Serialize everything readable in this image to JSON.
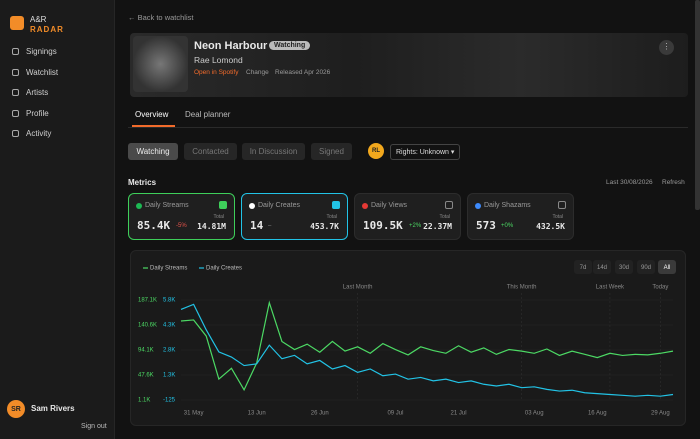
{
  "sidebar": {
    "brand": [
      "A&R",
      "RADAR"
    ],
    "nav": [
      "Signings",
      "Watchlist",
      "Artists",
      "Profile",
      "Activity"
    ],
    "user": {
      "initials": "SR",
      "name": "Sam Rivers",
      "signout": "Sign out"
    }
  },
  "header": {
    "back": "Back to watchlist",
    "title": "Neon Harbour",
    "badge": "Watching",
    "artist": "Rae Lomond",
    "links": [
      "Open in Spotify",
      "Change",
      "Released Apr 2026"
    ]
  },
  "tabs": {
    "items": [
      "Overview",
      "Deal planner"
    ],
    "active": 0
  },
  "status": {
    "items": [
      "Watching",
      "Contacted",
      "In Discussion",
      "Signed"
    ],
    "active": 0,
    "owner": "RL",
    "rights": "Rights: Unknown"
  },
  "metrics": {
    "title": "Metrics",
    "last": "Last 30/08/2026",
    "refresh": "Refresh",
    "cards": [
      {
        "name": "Daily Streams",
        "value": "85.4K",
        "delta": "-5%",
        "total_label": "Total",
        "total": "14.81M",
        "checked": true,
        "color": "#3ecf5a",
        "icon": "#1db954"
      },
      {
        "name": "Daily Creates",
        "value": "14",
        "delta": "–",
        "total_label": "Total",
        "total": "453.7K",
        "checked": true,
        "color": "#22c3e6",
        "icon": "#ffffff"
      },
      {
        "name": "Daily Views",
        "value": "109.5K",
        "delta": "+2%",
        "total_label": "Total",
        "total": "22.37M",
        "checked": false,
        "color": null,
        "icon": "#e53935"
      },
      {
        "name": "Daily Shazams",
        "value": "573",
        "delta": "+0%",
        "total_label": "Total",
        "total": "432.5K",
        "checked": false,
        "color": null,
        "icon": "#3d8bfd"
      }
    ]
  },
  "chart_data": {
    "type": "line",
    "ranges": [
      "7d",
      "14d",
      "30d",
      "90d",
      "All"
    ],
    "active_range": 4,
    "xlim": [
      0,
      39
    ],
    "xticks": [
      {
        "value": 1,
        "label": "31 May"
      },
      {
        "value": 6,
        "label": "13 Jun"
      },
      {
        "value": 11,
        "label": "26 Jun"
      },
      {
        "value": 17,
        "label": "09 Jul"
      },
      {
        "value": 22,
        "label": "21 Jul"
      },
      {
        "value": 28,
        "label": "03 Aug"
      },
      {
        "value": 33,
        "label": "16 Aug"
      },
      {
        "value": 38,
        "label": "29 Aug"
      }
    ],
    "ylim": [
      1100,
      187100
    ],
    "yticks": [
      {
        "value": 187100,
        "label": "187.1K"
      },
      {
        "value": 140600,
        "label": "140.6K"
      },
      {
        "value": 94100,
        "label": "94.1K"
      },
      {
        "value": 47600,
        "label": "47.6K"
      },
      {
        "value": 1100,
        "label": "1.1K"
      }
    ],
    "y2lim": [
      -125,
      5755
    ],
    "y2ticks": [
      {
        "value": 5755,
        "label": "5.8K"
      },
      {
        "value": 4285,
        "label": "4.3K"
      },
      {
        "value": 2815,
        "label": "2.8K"
      },
      {
        "value": 1345,
        "label": "1.3K"
      },
      -125
    ],
    "annotations": [
      {
        "label": "Last Month",
        "x": 14
      },
      {
        "label": "This Month",
        "x": 27
      },
      {
        "label": "Last Week",
        "x": 34
      },
      {
        "label": "Today",
        "x": 38
      }
    ],
    "series": [
      {
        "name": "Daily Streams",
        "color": "#4cd964",
        "values": [
          148000,
          150000,
          120000,
          40000,
          60000,
          20000,
          70000,
          182000,
          110000,
          95000,
          105000,
          90000,
          110000,
          92000,
          100000,
          88000,
          106000,
          95000,
          85000,
          100000,
          93000,
          88000,
          102000,
          90000,
          98000,
          86000,
          95000,
          92000,
          88000,
          96000,
          84000,
          92000,
          86000,
          80000,
          88000,
          84000,
          86000,
          85000,
          88000,
          92000
        ]
      },
      {
        "name": "Daily Creates",
        "color": "#22c3e6",
        "axis": "y2",
        "values": [
          5200,
          5500,
          4000,
          2700,
          2400,
          1900,
          2000,
          3100,
          2300,
          2500,
          2000,
          2200,
          1700,
          1900,
          1500,
          1700,
          1300,
          1400,
          1100,
          1200,
          1000,
          1100,
          900,
          1000,
          800,
          700,
          800,
          600,
          650,
          500,
          400,
          450,
          300,
          250,
          200,
          150,
          100,
          150,
          100,
          200
        ]
      }
    ]
  }
}
